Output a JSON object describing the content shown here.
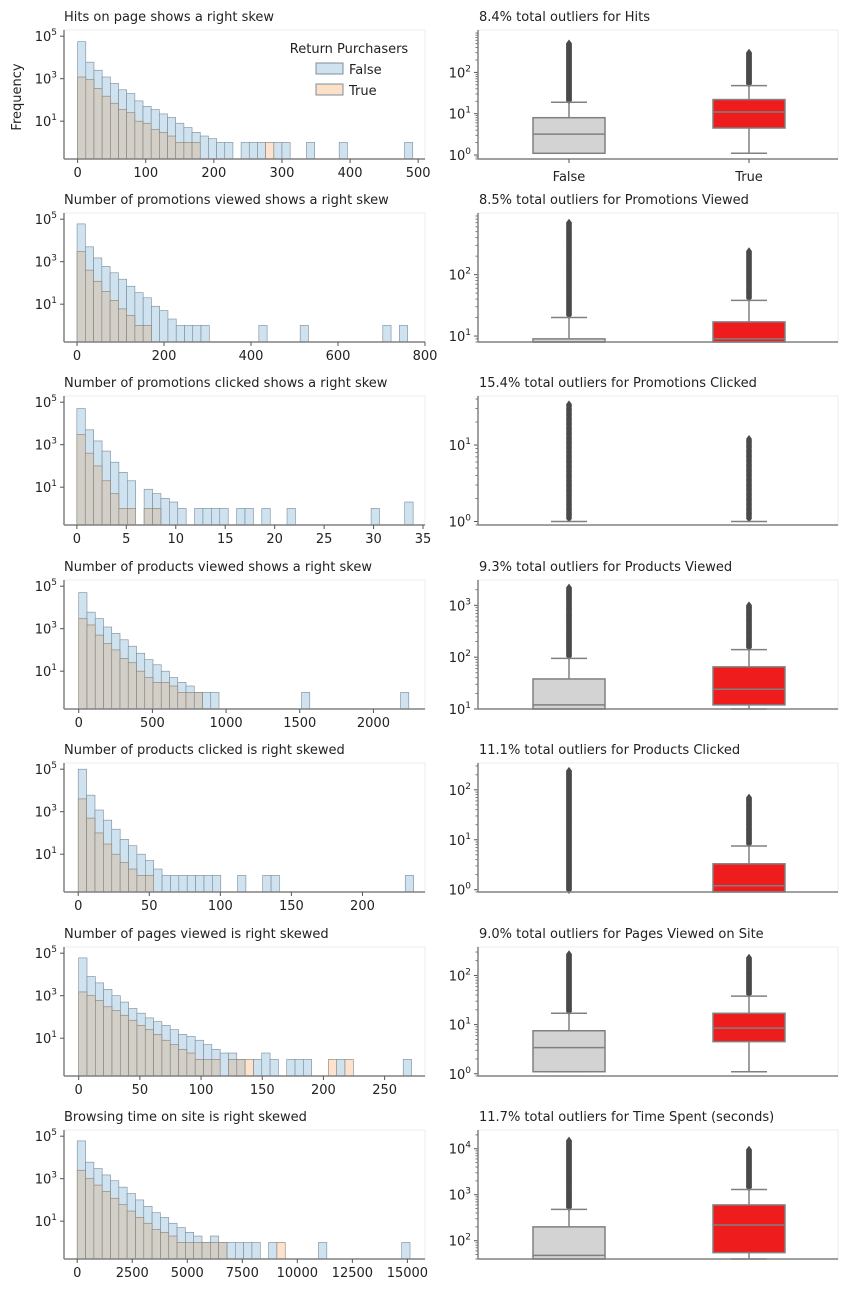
{
  "figure": {
    "ylabel": "Frequency",
    "legend": {
      "title": "Return Purchasers",
      "entries": [
        {
          "label": "False",
          "color": "#cfe2f0"
        },
        {
          "label": "True",
          "color": "#fde0c8"
        }
      ]
    },
    "colors": {
      "hist_false": "#cfe2f0",
      "hist_true": "#fde0c8",
      "hist_overlap": "#d2cdc3",
      "box_false": "#d3d3d3",
      "box_true": "#ee1c1c",
      "box_edge": "#808080",
      "outlier": "#4a4a4a"
    },
    "box_categories": [
      "False",
      "True"
    ]
  },
  "chart_data": [
    {
      "type": "bar",
      "kind": "histogram",
      "yscale": "log",
      "title": "Hits on page shows a right skew",
      "xlim": [
        -20,
        510
      ],
      "xticks": [
        0,
        100,
        200,
        300,
        400,
        500
      ],
      "yticks": [
        10,
        1000,
        100000
      ],
      "bin_start": 0,
      "bin_width": 12,
      "series": [
        {
          "name": "False",
          "values": [
            55000,
            6000,
            2500,
            1200,
            600,
            300,
            200,
            90,
            50,
            35,
            22,
            15,
            8,
            5,
            3,
            2,
            1.5,
            1,
            1,
            0,
            1,
            1,
            1,
            0,
            1,
            1,
            0,
            0,
            1,
            0,
            0,
            0,
            1,
            0,
            0,
            0,
            0,
            0,
            0,
            0,
            1
          ]
        },
        {
          "name": "True",
          "values": [
            1200,
            900,
            350,
            150,
            70,
            35,
            25,
            10,
            8,
            4,
            3,
            2,
            1,
            1,
            1,
            0,
            0,
            0,
            0,
            0,
            0,
            0,
            0,
            1
          ]
        }
      ]
    },
    {
      "type": "bar",
      "kind": "histogram",
      "yscale": "log",
      "title": "Number of promotions viewed shows a right skew",
      "xlim": [
        -30,
        800
      ],
      "xticks": [
        0,
        200,
        400,
        600,
        800
      ],
      "yticks": [
        10,
        1000,
        100000
      ],
      "bin_start": 0,
      "bin_width": 19,
      "series": [
        {
          "name": "False",
          "values": [
            60000,
            5000,
            1500,
            600,
            300,
            150,
            70,
            35,
            20,
            8,
            5,
            2,
            1,
            1,
            1,
            1,
            0,
            0,
            0,
            0,
            0,
            0,
            1,
            0,
            0,
            0,
            0,
            1,
            0,
            0,
            0,
            0,
            0,
            0,
            0,
            0,
            0,
            1,
            0,
            1
          ]
        },
        {
          "name": "True",
          "values": [
            3000,
            400,
            120,
            40,
            15,
            6,
            3,
            1,
            1
          ]
        }
      ]
    },
    {
      "type": "bar",
      "kind": "histogram",
      "yscale": "log",
      "title": "Number of promotions clicked shows a right skew",
      "xlim": [
        -1.3,
        35.2
      ],
      "xticks": [
        0,
        5,
        10,
        15,
        20,
        25,
        30,
        35
      ],
      "yticks": [
        10,
        1000,
        100000
      ],
      "bin_start": 0,
      "bin_width": 0.85,
      "series": [
        {
          "name": "False",
          "values": [
            50000,
            5000,
            1500,
            500,
            150,
            50,
            20,
            0,
            8,
            5,
            3,
            2,
            1,
            0,
            1,
            1,
            1,
            1,
            0,
            1,
            1,
            0,
            1,
            0,
            0,
            1,
            0,
            0,
            0,
            0,
            0,
            0,
            0,
            0,
            0,
            1,
            0,
            0,
            0,
            2
          ]
        },
        {
          "name": "True",
          "values": [
            3000,
            400,
            100,
            20,
            5,
            1,
            1,
            0,
            1,
            1
          ]
        }
      ]
    },
    {
      "type": "bar",
      "kind": "histogram",
      "yscale": "log",
      "title": "Number of products viewed shows a right skew",
      "xlim": [
        -100,
        2350
      ],
      "xticks": [
        0,
        500,
        1000,
        1500,
        2000
      ],
      "yticks": [
        10,
        1000,
        100000
      ],
      "bin_start": 0,
      "bin_width": 56,
      "series": [
        {
          "name": "False",
          "values": [
            50000,
            6000,
            3000,
            1200,
            600,
            300,
            150,
            70,
            35,
            20,
            10,
            5,
            3,
            2,
            1,
            1,
            1,
            0,
            0,
            0,
            0,
            0,
            0,
            0,
            0,
            0,
            0,
            1,
            0,
            0,
            0,
            0,
            0,
            0,
            0,
            0,
            0,
            0,
            0,
            1
          ]
        },
        {
          "name": "True",
          "values": [
            3000,
            1500,
            500,
            200,
            100,
            40,
            25,
            10,
            5,
            3,
            3,
            2,
            1,
            1,
            1
          ]
        }
      ]
    },
    {
      "type": "bar",
      "kind": "histogram",
      "yscale": "log",
      "title": "Number of products clicked is right skewed",
      "xlim": [
        -10,
        244
      ],
      "xticks": [
        0,
        50,
        100,
        150,
        200
      ],
      "yticks": [
        10,
        1000,
        100000
      ],
      "bin_start": 0,
      "bin_width": 5.9,
      "series": [
        {
          "name": "False",
          "values": [
            100000,
            6000,
            1200,
            400,
            150,
            50,
            25,
            10,
            5,
            2,
            1,
            1,
            1,
            1,
            1,
            1,
            1,
            0,
            0,
            1,
            0,
            0,
            1,
            1,
            0,
            0,
            0,
            0,
            0,
            0,
            0,
            0,
            0,
            0,
            0,
            0,
            0,
            0,
            0,
            1
          ]
        },
        {
          "name": "True",
          "values": [
            4000,
            500,
            100,
            30,
            10,
            4,
            2,
            1,
            1
          ]
        }
      ]
    },
    {
      "type": "bar",
      "kind": "histogram",
      "yscale": "log",
      "title": "Number of pages viewed is right skewed",
      "xlim": [
        -12,
        283
      ],
      "xticks": [
        0,
        50,
        100,
        150,
        200,
        250
      ],
      "yticks": [
        10,
        1000,
        100000
      ],
      "bin_start": 0,
      "bin_width": 6.8,
      "series": [
        {
          "name": "False",
          "values": [
            60000,
            8000,
            4000,
            2000,
            1000,
            500,
            250,
            150,
            90,
            60,
            40,
            25,
            15,
            12,
            8,
            5,
            3,
            2,
            2,
            1,
            0,
            1,
            2,
            1,
            0,
            1,
            1,
            1,
            0,
            0,
            0,
            1,
            0,
            0,
            0,
            0,
            0,
            0,
            0,
            1
          ]
        },
        {
          "name": "True",
          "values": [
            1500,
            1000,
            600,
            300,
            200,
            120,
            70,
            40,
            25,
            15,
            8,
            5,
            3,
            2,
            1,
            1,
            1,
            0,
            1,
            1,
            1,
            0,
            0,
            0,
            0,
            0,
            0,
            0,
            0,
            0,
            1,
            0,
            1
          ]
        }
      ]
    },
    {
      "type": "bar",
      "kind": "histogram",
      "yscale": "log",
      "title": "Browsing time on site is right skewed",
      "xlim": [
        -600,
        15800
      ],
      "xticks": [
        0,
        2500,
        5000,
        7500,
        10000,
        12500,
        15000
      ],
      "yticks": [
        10,
        1000,
        100000
      ],
      "bin_start": 0,
      "bin_width": 378,
      "series": [
        {
          "name": "False",
          "values": [
            60000,
            6000,
            3000,
            1500,
            800,
            400,
            200,
            100,
            50,
            25,
            15,
            8,
            5,
            3,
            2,
            1,
            2,
            1,
            1,
            1,
            1,
            1,
            0,
            1,
            0,
            0,
            0,
            0,
            0,
            1,
            0,
            0,
            0,
            0,
            0,
            0,
            0,
            0,
            0,
            1
          ]
        },
        {
          "name": "True",
          "values": [
            2500,
            1000,
            500,
            250,
            120,
            60,
            30,
            15,
            8,
            4,
            3,
            2,
            1,
            1,
            1,
            1,
            1,
            1,
            0,
            0,
            0,
            0,
            0,
            0,
            1
          ]
        }
      ]
    },
    {
      "type": "box",
      "yscale": "log",
      "title": "8.4% total outliers for Hits",
      "ylim": [
        0.8,
        900
      ],
      "yticks": [
        1,
        10,
        100
      ],
      "boxes": [
        {
          "category": "False",
          "whisker_low": 1.1,
          "q1": 1.1,
          "median": 3.2,
          "q3": 8,
          "whisker_high": 19,
          "outlier_max": 500
        },
        {
          "category": "True",
          "whisker_low": 1.1,
          "q1": 4.5,
          "median": 11,
          "q3": 22,
          "whisker_high": 48,
          "outlier_max": 300
        }
      ]
    },
    {
      "type": "box",
      "yscale": "log",
      "title": "8.5% total outliers for Promotions Viewed",
      "ylim": [
        8,
        900
      ],
      "yticks": [
        10,
        100
      ],
      "boxes": [
        {
          "category": "False",
          "whisker_low": 8,
          "q1": 8,
          "median": 8,
          "q3": 9,
          "whisker_high": 20,
          "outlier_max": 700
        },
        {
          "category": "True",
          "whisker_low": 8,
          "q1": 8,
          "median": 9,
          "q3": 17,
          "whisker_high": 38,
          "outlier_max": 240
        }
      ]
    },
    {
      "type": "box",
      "yscale": "log",
      "title": "15.4% total outliers for Promotions Clicked",
      "ylim": [
        0.9,
        40
      ],
      "yticks": [
        1,
        10
      ],
      "boxes": [
        {
          "category": "False",
          "whisker_low": 1,
          "q1": 1,
          "median": 1,
          "q3": 1,
          "whisker_high": 1,
          "outlier_max": 34
        },
        {
          "category": "True",
          "whisker_low": 1,
          "q1": 1,
          "median": 1,
          "q3": 1,
          "whisker_high": 1,
          "outlier_max": 12
        }
      ]
    },
    {
      "type": "box",
      "yscale": "log",
      "title": "9.3% total outliers for Products Viewed",
      "ylim": [
        10,
        2700
      ],
      "yticks": [
        10,
        100,
        1000
      ],
      "boxes": [
        {
          "category": "False",
          "whisker_low": 10,
          "q1": 10,
          "median": 12,
          "q3": 38,
          "whisker_high": 95,
          "outlier_max": 2200
        },
        {
          "category": "True",
          "whisker_low": 10,
          "q1": 12,
          "median": 24,
          "q3": 65,
          "whisker_high": 140,
          "outlier_max": 1000
        }
      ]
    },
    {
      "type": "box",
      "yscale": "log",
      "title": "11.1% total outliers for Products Clicked",
      "ylim": [
        0.9,
        300
      ],
      "yticks": [
        1,
        10,
        100
      ],
      "boxes": [
        {
          "category": "False",
          "whisker_low": 0.9,
          "q1": 0.9,
          "median": 0.9,
          "q3": 0.9,
          "whisker_high": 0.9,
          "outlier_max": 240
        },
        {
          "category": "True",
          "whisker_low": 0.9,
          "q1": 0.9,
          "median": 1.2,
          "q3": 3.3,
          "whisker_high": 7.5,
          "outlier_max": 70
        }
      ]
    },
    {
      "type": "box",
      "yscale": "log",
      "title": "9.0% total outliers for Pages Viewed on Site",
      "ylim": [
        0.9,
        330
      ],
      "yticks": [
        1,
        10,
        100
      ],
      "boxes": [
        {
          "category": "False",
          "whisker_low": 1.1,
          "q1": 1.1,
          "median": 3.4,
          "q3": 7.5,
          "whisker_high": 17,
          "outlier_max": 270
        },
        {
          "category": "True",
          "whisker_low": 1.1,
          "q1": 4.5,
          "median": 8.5,
          "q3": 17,
          "whisker_high": 38,
          "outlier_max": 230
        }
      ]
    },
    {
      "type": "box",
      "yscale": "log",
      "title": "11.7% total outliers for Time Spent (seconds)",
      "ylim": [
        40,
        22000
      ],
      "yticks": [
        100,
        1000,
        10000
      ],
      "boxes": [
        {
          "category": "False",
          "whisker_low": 40,
          "q1": 40,
          "median": 48,
          "q3": 200,
          "whisker_high": 480,
          "outlier_max": 15000
        },
        {
          "category": "True",
          "whisker_low": 40,
          "q1": 55,
          "median": 220,
          "q3": 600,
          "whisker_high": 1300,
          "outlier_max": 9500
        }
      ]
    }
  ]
}
